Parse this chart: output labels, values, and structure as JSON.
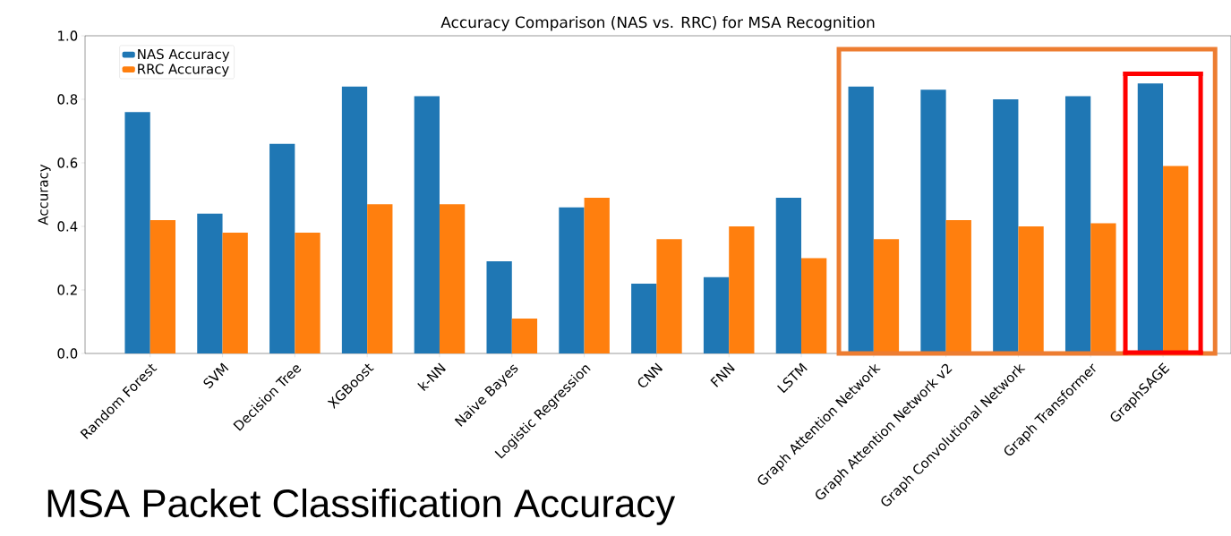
{
  "chart_data": {
    "type": "bar",
    "title": "Accuracy Comparison (NAS vs. RRC) for MSA Recognition",
    "ylabel": "Accuracy",
    "categories": [
      "Random Forest",
      "SVM",
      "Decision Tree",
      "XGBoost",
      "k-NN",
      "Naive Bayes",
      "Logistic Regression",
      "CNN",
      "FNN",
      "LSTM",
      "Graph Attention Network",
      "Graph Attention Network v2",
      "Graph Convolutional Network",
      "Graph Transformer",
      "GraphSAGE"
    ],
    "series": [
      {
        "name": "NAS Accuracy",
        "color": "#1f77b4",
        "values": [
          0.76,
          0.44,
          0.66,
          0.84,
          0.81,
          0.29,
          0.46,
          0.22,
          0.24,
          0.49,
          0.84,
          0.83,
          0.8,
          0.81,
          0.85
        ]
      },
      {
        "name": "RRC Accuracy",
        "color": "#ff7f0e",
        "values": [
          0.42,
          0.38,
          0.38,
          0.47,
          0.47,
          0.11,
          0.49,
          0.36,
          0.4,
          0.3,
          0.36,
          0.42,
          0.4,
          0.41,
          0.59
        ]
      }
    ],
    "ylim": [
      0,
      1
    ],
    "yticks": [
      {
        "value": 0,
        "label": "0.0"
      },
      {
        "value": 0.2,
        "label": "0.2"
      },
      {
        "value": 0.4,
        "label": "0.4"
      },
      {
        "value": 0.6,
        "label": "0.6"
      },
      {
        "value": 0.8,
        "label": "0.8"
      },
      {
        "value": 1,
        "label": "1.0"
      }
    ],
    "legend": "top left",
    "annotations": [
      "MSA Packet Classification Accuracy"
    ]
  }
}
